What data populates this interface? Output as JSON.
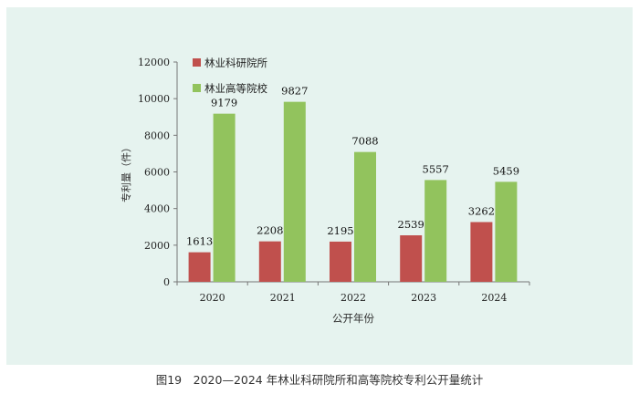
{
  "caption": "图19　2020—2024 年林业科研院所和高等院校专利公开量统计",
  "chart_data": {
    "type": "bar",
    "categories": [
      "2020",
      "2021",
      "2022",
      "2023",
      "2024"
    ],
    "series": [
      {
        "name": "林业科研院所",
        "values": [
          1613,
          2208,
          2195,
          2539,
          3262
        ],
        "color": "#c0504d"
      },
      {
        "name": "林业高等院校",
        "values": [
          9179,
          9827,
          7088,
          5557,
          5459
        ],
        "color": "#92c35d"
      }
    ],
    "xlabel": "公开年份",
    "ylabel": "专利量（件）",
    "ylim": [
      0,
      12000
    ],
    "yticks": [
      "0",
      "2000",
      "4000",
      "6000",
      "8000",
      "10000",
      "12000"
    ],
    "tick_values": [
      0,
      2000,
      4000,
      6000,
      8000,
      10000,
      12000
    ],
    "grid": false,
    "legend_position": "top-left",
    "panel_background": "#e6f3ef"
  }
}
